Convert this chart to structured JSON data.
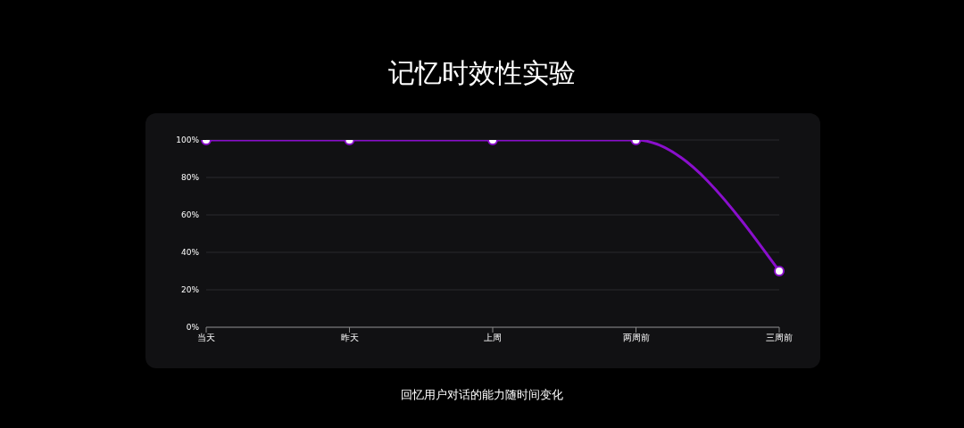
{
  "chart_data": {
    "type": "line",
    "title": "记忆时效性实验",
    "categories": [
      "当天",
      "昨天",
      "上周",
      "两周前",
      "三周前"
    ],
    "series": [
      {
        "color": "#8a0fcc",
        "values": [
          100,
          100,
          100,
          100,
          30
        ]
      }
    ],
    "ylim": [
      0,
      100
    ],
    "yticks": [
      {
        "value": 0,
        "label": "0%"
      },
      {
        "value": 20,
        "label": "20%"
      },
      {
        "value": 40,
        "label": "40%"
      },
      {
        "value": 60,
        "label": "60%"
      },
      {
        "value": 80,
        "label": "80%"
      },
      {
        "value": 100,
        "label": "100%"
      }
    ],
    "grid": "y",
    "marker": "circle",
    "line_style": "solid",
    "legend": false,
    "annotations": [
      "回忆用户对话的能力随时间变化"
    ]
  }
}
